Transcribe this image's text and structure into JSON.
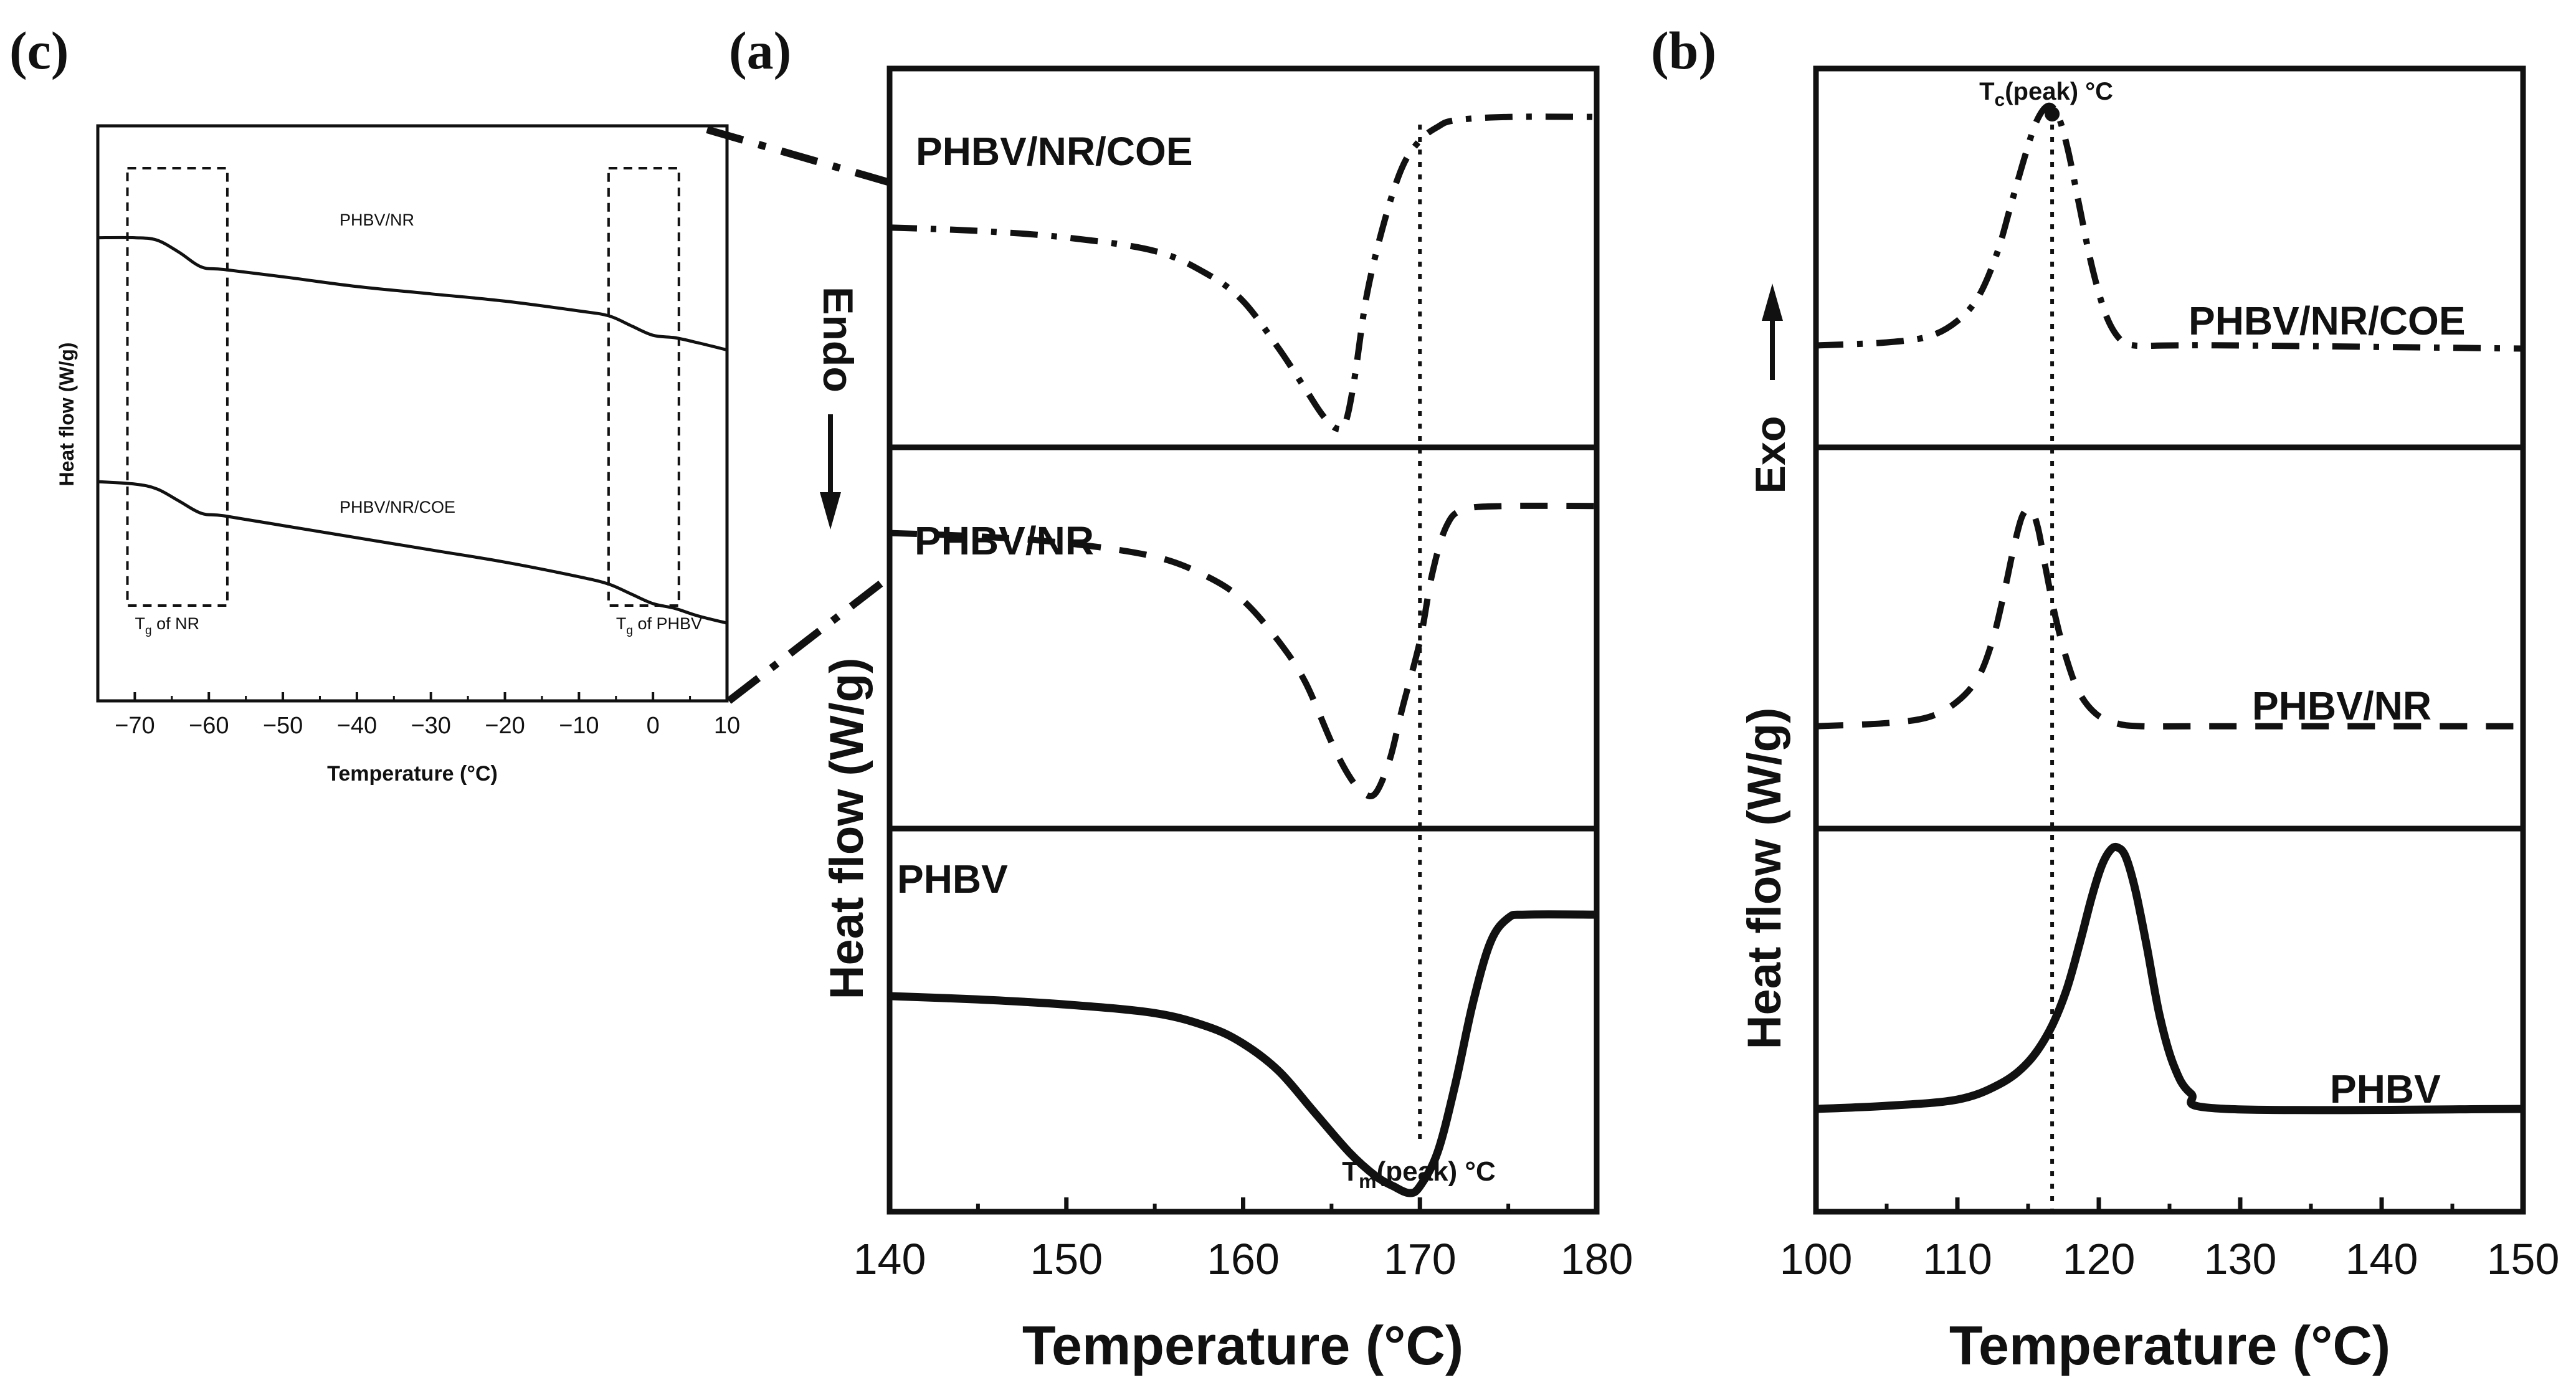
{
  "panel_labels": {
    "a": "(a)",
    "b": "(b)",
    "c": "(c)"
  },
  "colors": {
    "line": "#111111",
    "background": "#ffffff"
  },
  "chart_data": [
    {
      "id": "a",
      "type": "line",
      "title": "(a)",
      "xlabel": "Temperature (°C)",
      "ylabel": "Heat flow (W/g)",
      "xlim": [
        140,
        180
      ],
      "xticks": [
        "140",
        "150",
        "160",
        "170",
        "180"
      ],
      "direction_label": "Endo",
      "annotation": {
        "main": "T",
        "sub": "m",
        "rest": "(peak) °C",
        "x": 170
      },
      "series": [
        {
          "name": "PHBV/NR/COE",
          "style": "dashdot",
          "label": "PHBV/NR/COE",
          "x": [
            140,
            145,
            150,
            155,
            158,
            160,
            162,
            163.5,
            164.5,
            165.3,
            165.8,
            166.3,
            167,
            168,
            169,
            170,
            171,
            172,
            175,
            180
          ],
          "y": [
            0.6,
            0.59,
            0.57,
            0.53,
            0.46,
            0.38,
            0.24,
            0.12,
            0.04,
            0.0,
            0.02,
            0.15,
            0.4,
            0.62,
            0.78,
            0.86,
            0.9,
            0.92,
            0.93,
            0.93
          ]
        },
        {
          "name": "PHBV/NR",
          "style": "dashed",
          "label": "PHBV/NR",
          "x": [
            140,
            145,
            150,
            155,
            158,
            160,
            162,
            163.5,
            165,
            166,
            166.8,
            167.5,
            168.3,
            169,
            170,
            170.7,
            171.5,
            172.5,
            175,
            180
          ],
          "y": [
            0.82,
            0.81,
            0.79,
            0.75,
            0.69,
            0.62,
            0.5,
            0.38,
            0.2,
            0.1,
            0.05,
            0.05,
            0.15,
            0.3,
            0.5,
            0.7,
            0.84,
            0.89,
            0.9,
            0.9
          ]
        },
        {
          "name": "PHBV",
          "style": "solid",
          "label": "PHBV",
          "x": [
            140,
            145,
            150,
            155,
            158,
            160,
            162,
            164,
            166,
            167.5,
            168.5,
            169.4,
            170,
            171,
            172,
            173,
            174,
            175,
            176,
            180
          ],
          "y": [
            0.58,
            0.57,
            0.555,
            0.53,
            0.49,
            0.44,
            0.36,
            0.24,
            0.12,
            0.05,
            0.02,
            0.0,
            0.02,
            0.12,
            0.32,
            0.56,
            0.74,
            0.81,
            0.82,
            0.82
          ]
        }
      ]
    },
    {
      "id": "b",
      "type": "line",
      "title": "(b)",
      "xlabel": "Temperature (°C)",
      "ylabel": "Heat flow (W/g)",
      "xlim": [
        100,
        150
      ],
      "xticks": [
        "100",
        "110",
        "120",
        "130",
        "140",
        "150"
      ],
      "direction_label": "Exo",
      "annotation": {
        "main": "T",
        "sub": "c",
        "rest": "(peak) °C",
        "x": 116.7
      },
      "series": [
        {
          "name": "PHBV/NR/COE",
          "style": "dashdot",
          "label": "PHBV/NR/COE",
          "x": [
            100,
            105,
            108,
            110,
            111.5,
            112.8,
            113.8,
            114.8,
            115.6,
            116.4,
            117.1,
            117.8,
            118.6,
            119.5,
            120.5,
            121.5,
            122.5,
            125,
            130,
            150
          ],
          "y": [
            0.22,
            0.23,
            0.25,
            0.3,
            0.38,
            0.52,
            0.68,
            0.84,
            0.95,
            1.0,
            0.97,
            0.86,
            0.68,
            0.48,
            0.32,
            0.24,
            0.22,
            0.22,
            0.22,
            0.21
          ]
        },
        {
          "name": "PHBV/NR",
          "style": "dashed",
          "label": "PHBV/NR",
          "x": [
            100,
            105,
            108,
            110,
            111.5,
            112.5,
            113.3,
            114,
            114.6,
            115.2,
            115.7,
            116.2,
            116.9,
            117.7,
            118.6,
            119.8,
            121.2,
            123,
            128,
            150
          ],
          "y": [
            0.22,
            0.23,
            0.25,
            0.3,
            0.38,
            0.5,
            0.65,
            0.8,
            0.9,
            0.92,
            0.86,
            0.74,
            0.58,
            0.44,
            0.33,
            0.26,
            0.23,
            0.22,
            0.22,
            0.22
          ]
        },
        {
          "name": "PHBV",
          "style": "solid",
          "label": "PHBV",
          "x": [
            100,
            105,
            110,
            113,
            115,
            116.5,
            117.7,
            118.7,
            119.5,
            120.2,
            120.8,
            121.3,
            121.9,
            122.6,
            123.4,
            124.3,
            125.3,
            126.5,
            129,
            150
          ],
          "y": [
            0.22,
            0.23,
            0.25,
            0.3,
            0.37,
            0.47,
            0.6,
            0.76,
            0.9,
            1.0,
            1.05,
            1.06,
            1.03,
            0.92,
            0.74,
            0.52,
            0.36,
            0.27,
            0.22,
            0.22
          ]
        }
      ]
    },
    {
      "id": "c",
      "type": "line",
      "title": "(c)",
      "xlabel": "Temperature (°C)",
      "ylabel": "Heat flow (W/g)",
      "xlim": [
        -75,
        10
      ],
      "xticks": [
        "−70",
        "−60",
        "−50",
        "−40",
        "−30",
        "−20",
        "−10",
        "0",
        "10"
      ],
      "tick_values": [
        -70,
        -60,
        -50,
        -40,
        -30,
        -20,
        -10,
        0,
        10
      ],
      "ylim": [
        0,
        1
      ],
      "boxes": [
        {
          "label_main": "T",
          "label_sub": "g",
          "label_rest": " of NR",
          "x0": -71,
          "x1": -57.5
        },
        {
          "label_main": "T",
          "label_sub": "g",
          "label_rest": " of PHBV",
          "x0": -6,
          "x1": 3.5
        }
      ],
      "series": [
        {
          "name": "PHBV/NR",
          "style": "solid",
          "label": "PHBV/NR",
          "x": [
            -75,
            -70,
            -67,
            -64,
            -61,
            -58,
            -50,
            -40,
            -30,
            -20,
            -10,
            -6,
            -3,
            0,
            3,
            6,
            10
          ],
          "y": [
            0.86,
            0.86,
            0.855,
            0.83,
            0.8,
            0.795,
            0.78,
            0.76,
            0.745,
            0.73,
            0.71,
            0.7,
            0.68,
            0.66,
            0.655,
            0.645,
            0.63
          ]
        },
        {
          "name": "PHBV/NR/COE",
          "style": "solid",
          "label": "PHBV/NR/COE",
          "x": [
            -75,
            -70,
            -67,
            -64,
            -61,
            -58,
            -50,
            -40,
            -30,
            -20,
            -10,
            -6,
            -3,
            0,
            3,
            6,
            10
          ],
          "y": [
            0.36,
            0.355,
            0.345,
            0.32,
            0.295,
            0.29,
            0.27,
            0.245,
            0.22,
            0.195,
            0.165,
            0.15,
            0.13,
            0.11,
            0.1,
            0.085,
            0.07
          ]
        }
      ]
    }
  ]
}
